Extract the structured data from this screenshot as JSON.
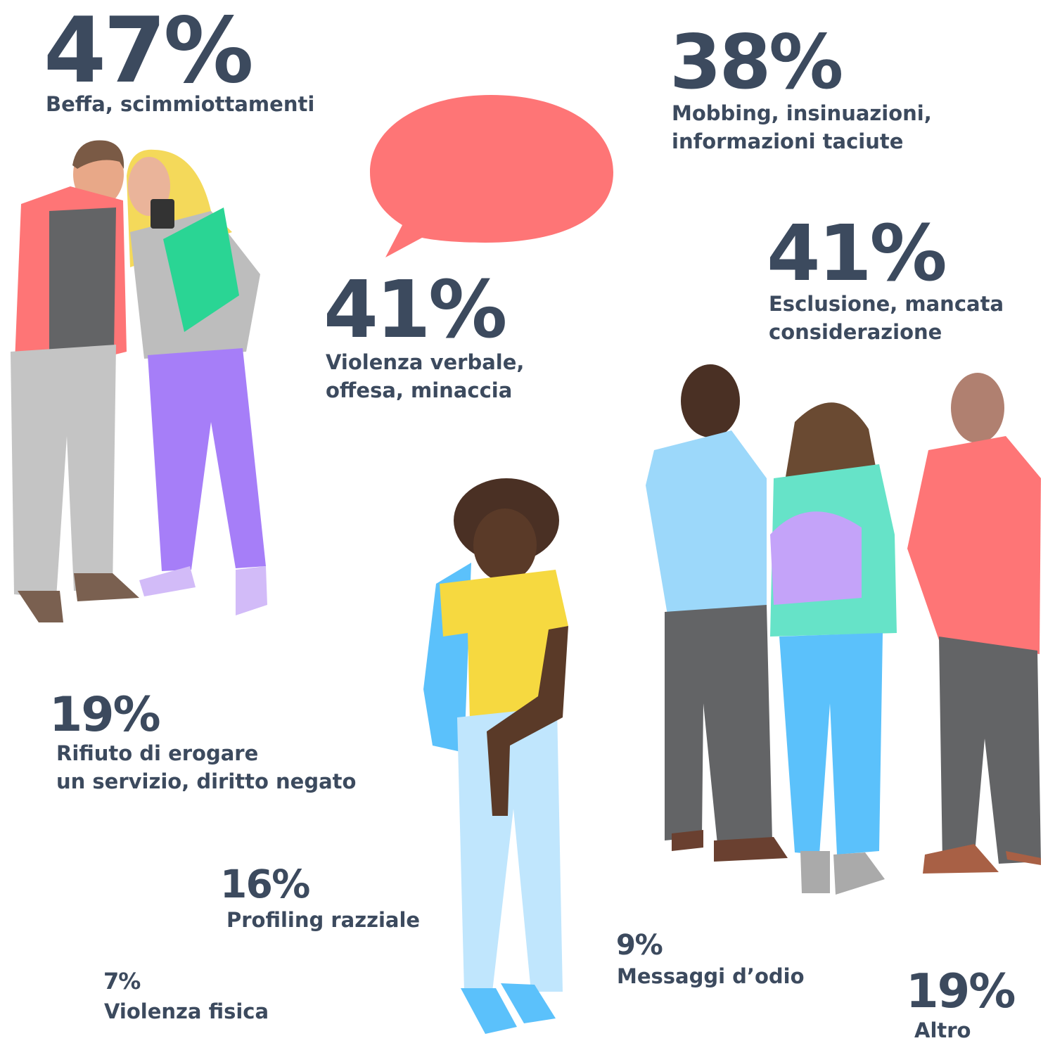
{
  "items": [
    {
      "stat": "47%",
      "label": [
        "Beffa, scimmiottamenti"
      ]
    },
    {
      "stat": "38%",
      "label": [
        "Mobbing, insinuazioni,",
        "informazioni taciute"
      ]
    },
    {
      "stat": "41%",
      "label": [
        "Violenza verbale,",
        "offesa, minaccia"
      ]
    },
    {
      "stat": "41%",
      "label": [
        "Esclusione, mancata",
        "considerazione"
      ]
    },
    {
      "stat": "19%",
      "label": [
        "Rifiuto di erogare",
        "un servizio, diritto negato"
      ]
    },
    {
      "stat": "16%",
      "label": [
        "Profiling razziale"
      ]
    },
    {
      "stat": "7%",
      "label": [
        "Violenza fisica"
      ]
    },
    {
      "stat": "9%",
      "label": [
        "Messaggi d’odio"
      ]
    },
    {
      "stat": "19%",
      "label": [
        "Altro"
      ]
    }
  ]
}
